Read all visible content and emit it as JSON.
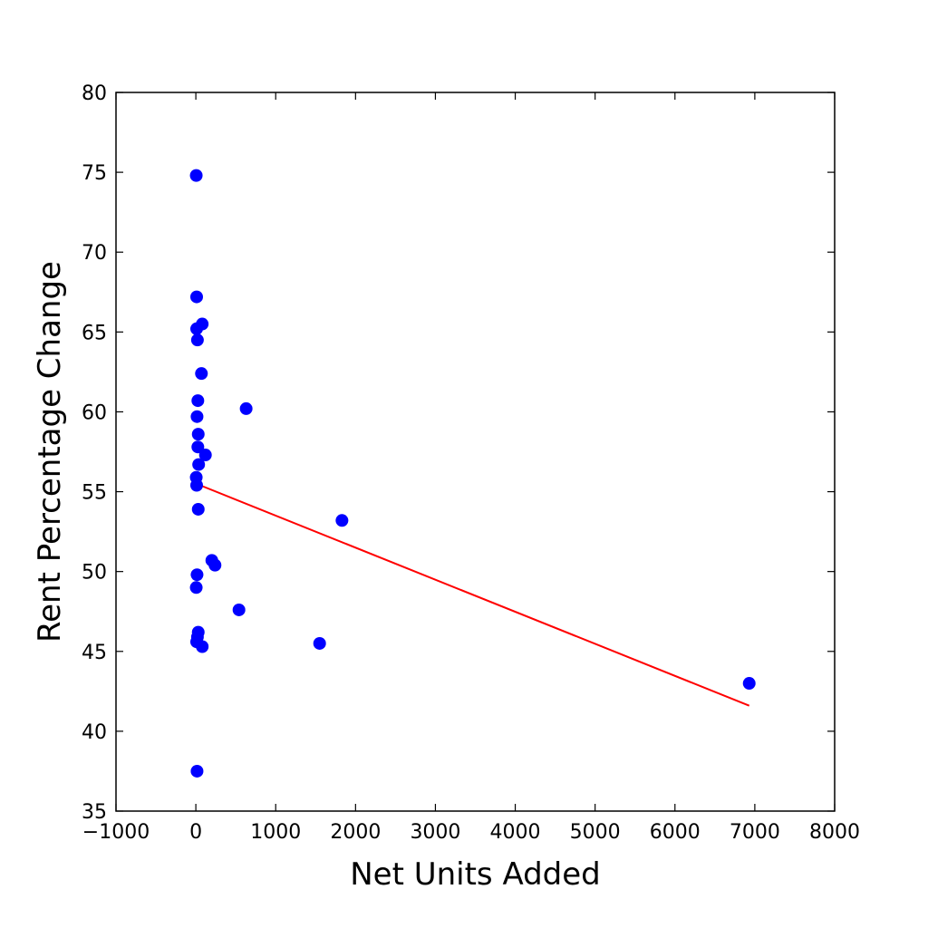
{
  "chart_data": {
    "type": "scatter",
    "title": "",
    "xlabel": "Net Units Added",
    "ylabel": "Rent Percentage Change",
    "xlim": [
      -1000,
      8000
    ],
    "ylim": [
      35,
      80
    ],
    "xticks": [
      -1000,
      0,
      1000,
      2000,
      3000,
      4000,
      5000,
      6000,
      7000,
      8000
    ],
    "xtick_labels": [
      "−1000",
      "0",
      "1000",
      "2000",
      "3000",
      "4000",
      "5000",
      "6000",
      "7000",
      "8000"
    ],
    "yticks": [
      35,
      40,
      45,
      50,
      55,
      60,
      65,
      70,
      75,
      80
    ],
    "ytick_labels": [
      "35",
      "40",
      "45",
      "50",
      "55",
      "60",
      "65",
      "70",
      "75",
      "80"
    ],
    "grid": false,
    "series": [
      {
        "kind": "points",
        "color": "#0000ff",
        "points": [
          {
            "x": 5,
            "y": 74.8
          },
          {
            "x": 10,
            "y": 67.2
          },
          {
            "x": 80,
            "y": 65.5
          },
          {
            "x": 10,
            "y": 65.2
          },
          {
            "x": 20,
            "y": 64.5
          },
          {
            "x": 70,
            "y": 62.4
          },
          {
            "x": 25,
            "y": 60.7
          },
          {
            "x": 630,
            "y": 60.2
          },
          {
            "x": 15,
            "y": 59.7
          },
          {
            "x": 30,
            "y": 58.6
          },
          {
            "x": 25,
            "y": 57.8
          },
          {
            "x": 120,
            "y": 57.3
          },
          {
            "x": 35,
            "y": 56.7
          },
          {
            "x": 5,
            "y": 55.9
          },
          {
            "x": 10,
            "y": 55.4
          },
          {
            "x": 30,
            "y": 53.9
          },
          {
            "x": 1830,
            "y": 53.2
          },
          {
            "x": 200,
            "y": 50.7
          },
          {
            "x": 240,
            "y": 50.4
          },
          {
            "x": 15,
            "y": 49.8
          },
          {
            "x": 5,
            "y": 49.0
          },
          {
            "x": 540,
            "y": 47.6
          },
          {
            "x": 30,
            "y": 46.2
          },
          {
            "x": 20,
            "y": 45.9
          },
          {
            "x": 10,
            "y": 45.6
          },
          {
            "x": 1550,
            "y": 45.5
          },
          {
            "x": 80,
            "y": 45.3
          },
          {
            "x": 6930,
            "y": 43.0
          },
          {
            "x": 15,
            "y": 37.5
          }
        ]
      },
      {
        "kind": "fit-line",
        "color": "#ff0000",
        "points": [
          {
            "x": 5,
            "y": 55.5
          },
          {
            "x": 6930,
            "y": 41.6
          }
        ]
      }
    ]
  }
}
